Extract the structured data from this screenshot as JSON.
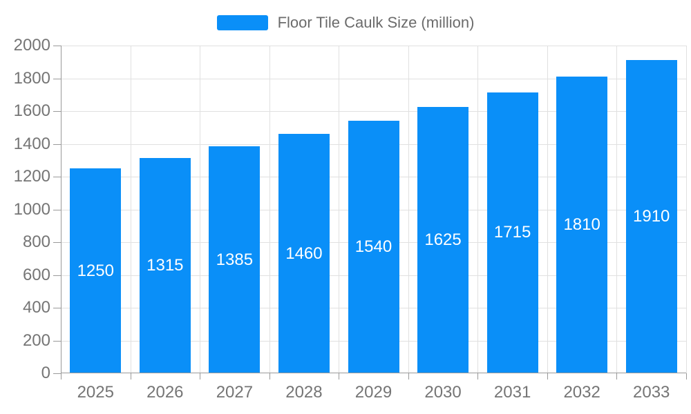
{
  "legend": {
    "label": "Floor Tile Caulk Size (million)"
  },
  "chart_data": {
    "type": "bar",
    "title": "Floor Tile Caulk Size (million)",
    "categories": [
      "2025",
      "2026",
      "2027",
      "2028",
      "2029",
      "2030",
      "2031",
      "2032",
      "2033"
    ],
    "series": [
      {
        "name": "Floor Tile Caulk Size (million)",
        "color": "#0a8ff8",
        "values": [
          1250,
          1315,
          1385,
          1460,
          1540,
          1625,
          1715,
          1810,
          1910
        ]
      }
    ],
    "xlabel": "",
    "ylabel": "",
    "ylim": [
      0,
      2000
    ],
    "ytick_step": 200,
    "grid": true,
    "legend_position": "top-center",
    "value_labels": "inside-center",
    "colors": {
      "bar": "#0a8ff8",
      "axis_line": "#999999",
      "grid_line": "#e0e0e0",
      "tick_label": "#757575",
      "value_label": "#ffffff",
      "legend_label": "#6b6b6b",
      "background": "#ffffff"
    }
  }
}
